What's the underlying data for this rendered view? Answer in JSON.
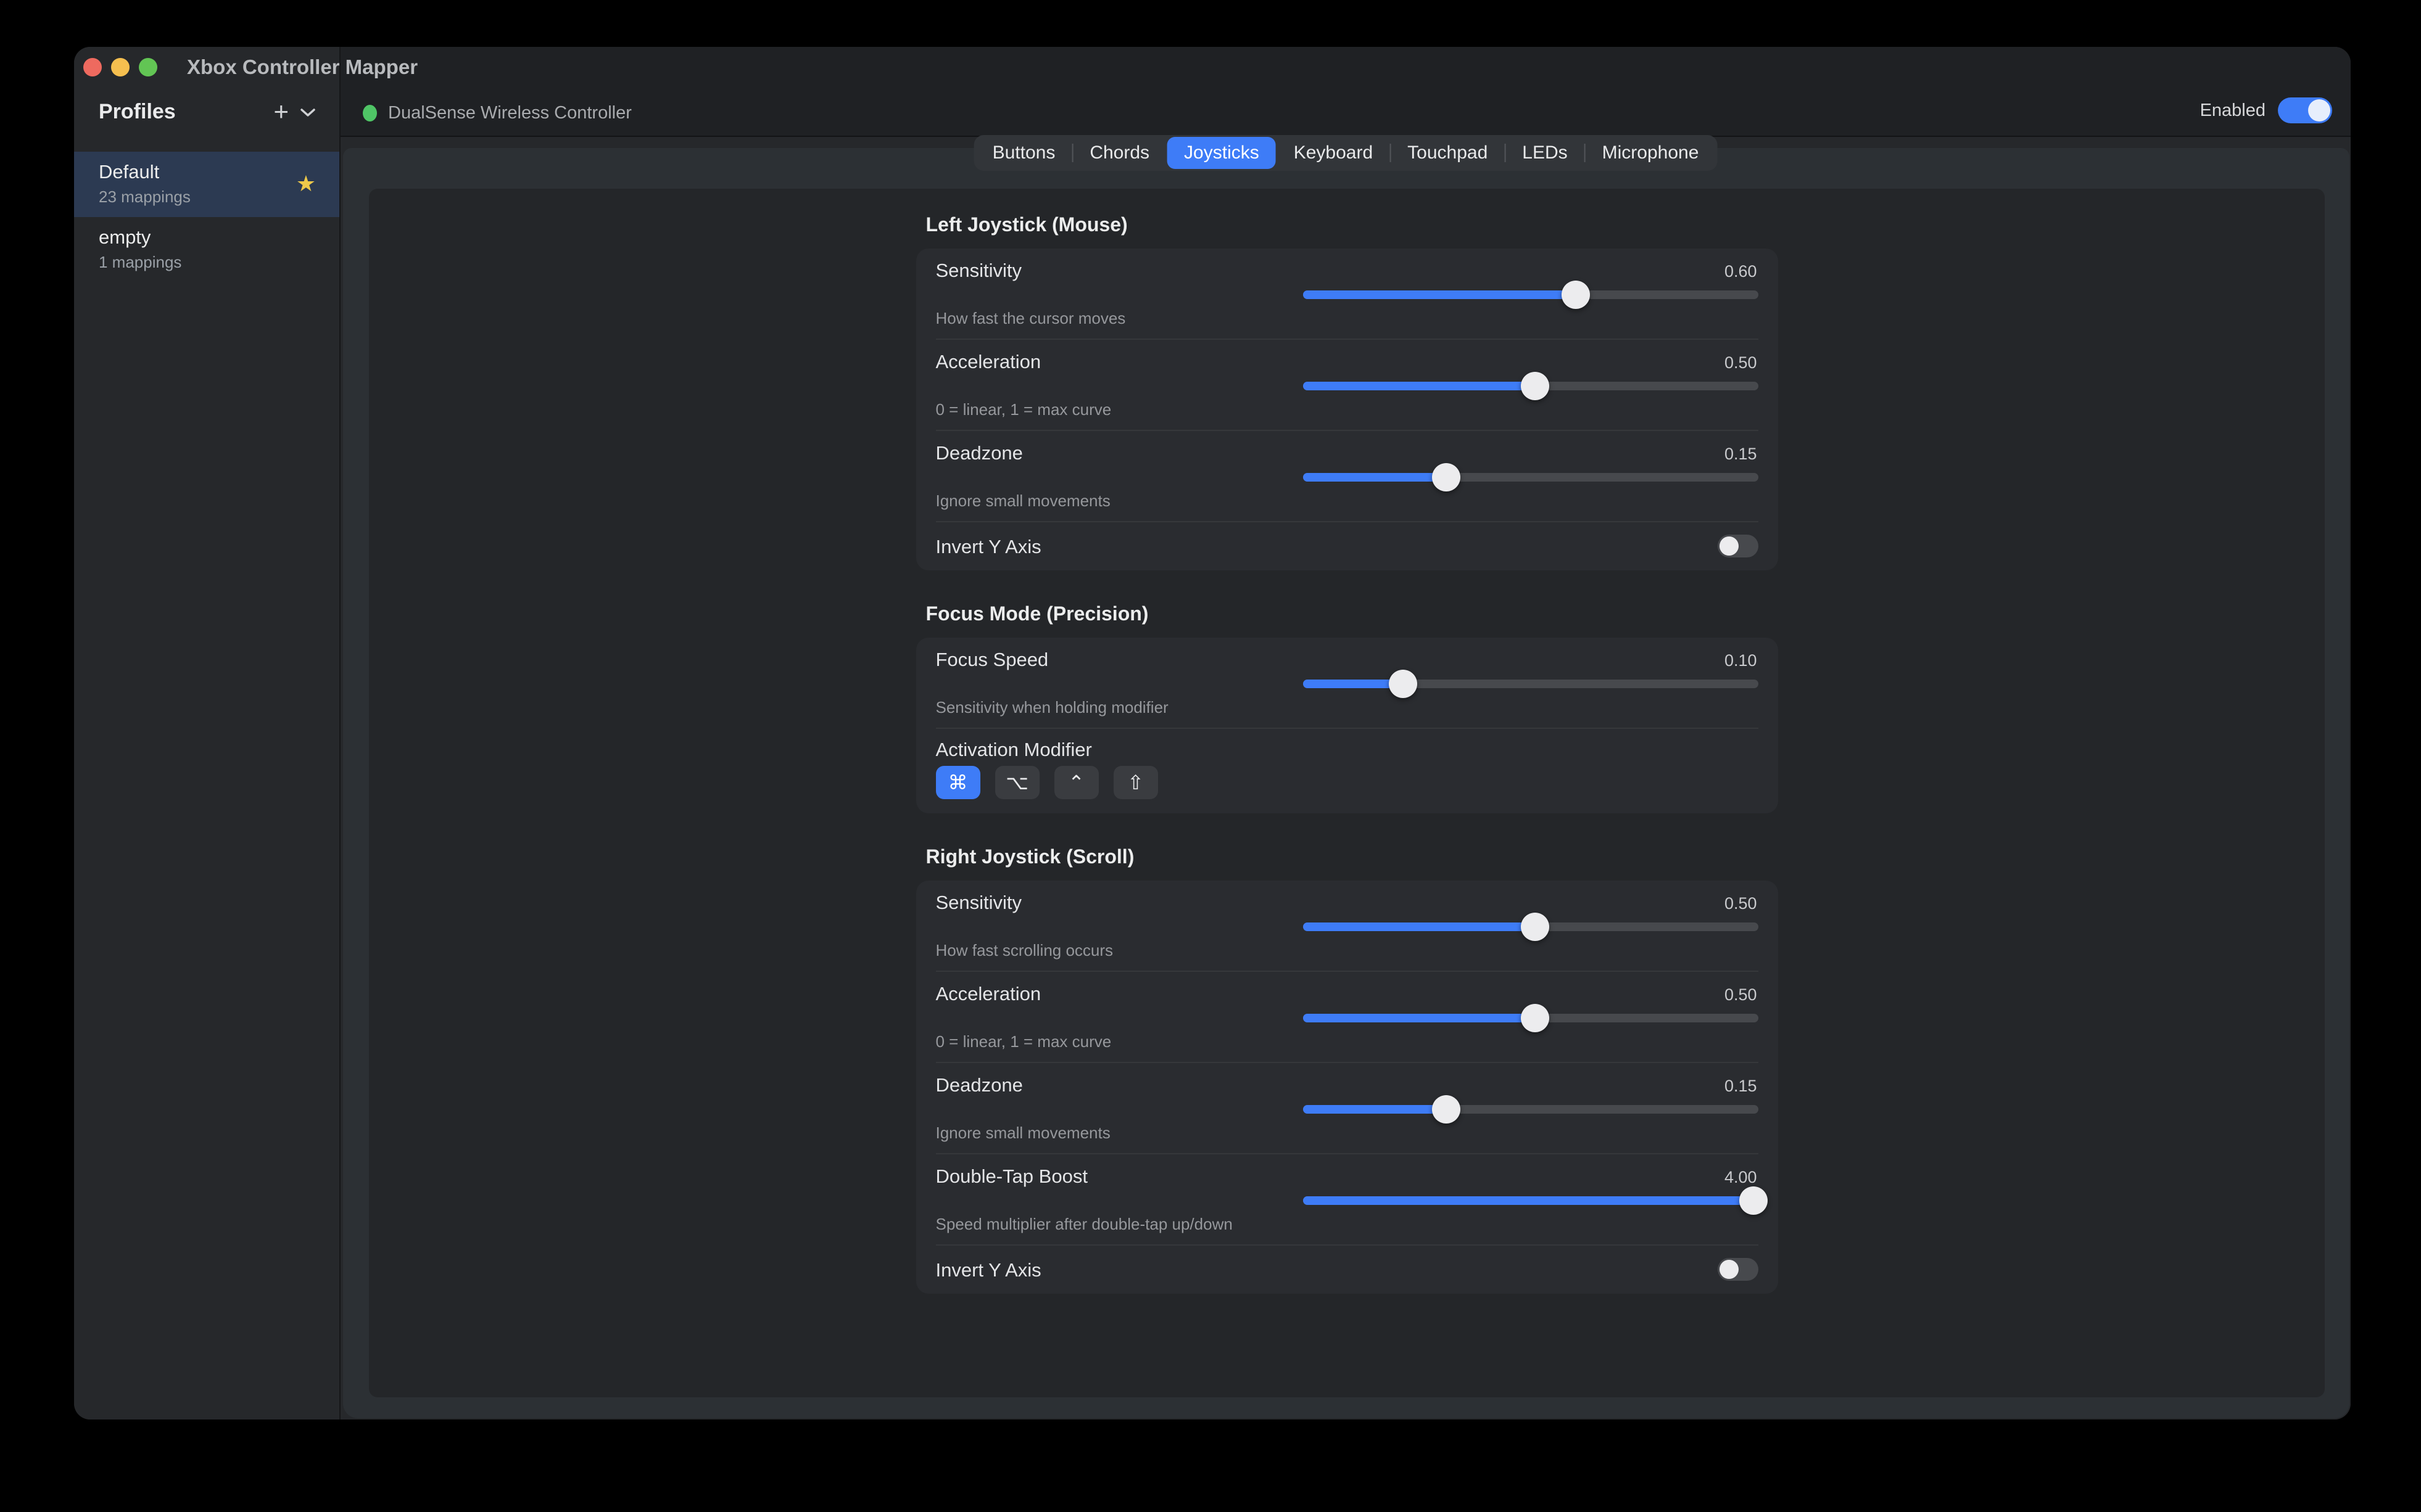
{
  "window": {
    "title": "Xbox Controller Mapper"
  },
  "colors": {
    "accent": "#3e7cf7",
    "chrome": "#26282b",
    "toolbar": "#1f2124",
    "sheet": "#2c3034",
    "panel": "#242629",
    "card": "#2a2c30",
    "selected_row": "#2c3a52",
    "star": "#eec94a",
    "status_green": "#4fc566",
    "traffic_red": "#ee6a5f",
    "traffic_yellow": "#f5bf4f",
    "traffic_green": "#62c554"
  },
  "icons": {
    "add_profile": "+",
    "profiles_menu_chevron": "chevron-down",
    "favorite_star": "★"
  },
  "sidebar": {
    "header": "Profiles",
    "profiles": [
      {
        "name": "Default",
        "mappings": "23 mappings",
        "selected": true,
        "starred": true
      },
      {
        "name": "empty",
        "mappings": "1 mappings",
        "selected": false,
        "starred": false
      }
    ]
  },
  "toolbar": {
    "device": "DualSense Wireless Controller",
    "status": "connected",
    "enabled_label": "Enabled",
    "enabled_on": true
  },
  "tabs": {
    "active": "Joysticks",
    "items": [
      "Buttons",
      "Chords",
      "Joysticks",
      "Keyboard",
      "Touchpad",
      "LEDs",
      "Microphone"
    ]
  },
  "sections": [
    {
      "title": "Left Joystick (Mouse)",
      "rows": [
        {
          "type": "slider",
          "label": "Sensitivity",
          "value": "0.60",
          "percent": 60,
          "subtitle": "How fast the cursor moves"
        },
        {
          "type": "slider",
          "label": "Acceleration",
          "value": "0.50",
          "percent": 51,
          "subtitle": "0 = linear, 1 = max curve"
        },
        {
          "type": "slider",
          "label": "Deadzone",
          "value": "0.15",
          "percent": 31.5,
          "subtitle": "Ignore small movements"
        },
        {
          "type": "toggle",
          "label": "Invert Y Axis",
          "on": false
        }
      ]
    },
    {
      "title": "Focus Mode (Precision)",
      "rows": [
        {
          "type": "slider",
          "label": "Focus Speed",
          "value": "0.10",
          "percent": 22,
          "subtitle": "Sensitivity when holding modifier"
        },
        {
          "type": "modifier",
          "label": "Activation Modifier",
          "keys": [
            {
              "glyph": "⌘",
              "name": "command",
              "selected": true
            },
            {
              "glyph": "⌥",
              "name": "option",
              "selected": false
            },
            {
              "glyph": "⌃",
              "name": "control",
              "selected": false
            },
            {
              "glyph": "⇧",
              "name": "shift",
              "selected": false
            }
          ]
        }
      ]
    },
    {
      "title": "Right Joystick (Scroll)",
      "rows": [
        {
          "type": "slider",
          "label": "Sensitivity",
          "value": "0.50",
          "percent": 51,
          "subtitle": "How fast scrolling occurs"
        },
        {
          "type": "slider",
          "label": "Acceleration",
          "value": "0.50",
          "percent": 51,
          "subtitle": "0 = linear, 1 = max curve"
        },
        {
          "type": "slider",
          "label": "Deadzone",
          "value": "0.15",
          "percent": 31.5,
          "subtitle": "Ignore small movements"
        },
        {
          "type": "slider",
          "label": "Double-Tap Boost",
          "value": "4.00",
          "percent": 99,
          "subtitle": "Speed multiplier after double-tap up/down"
        },
        {
          "type": "toggle",
          "label": "Invert Y Axis",
          "on": false
        }
      ]
    }
  ]
}
